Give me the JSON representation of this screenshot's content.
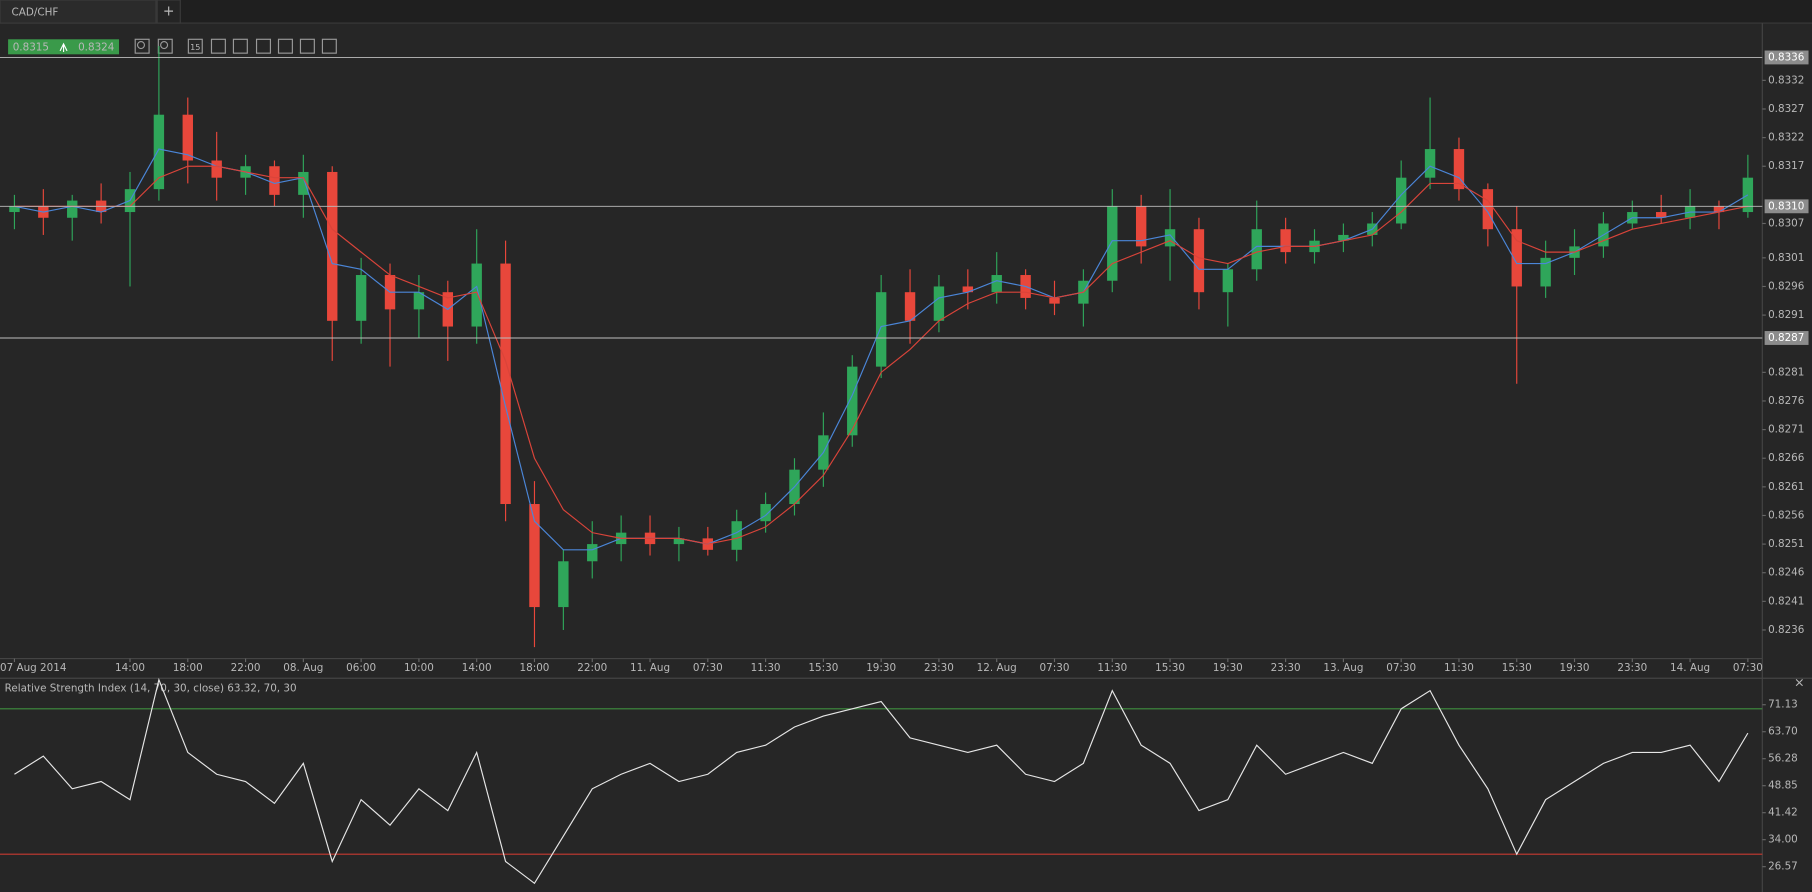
{
  "tab": {
    "title": "CAD/CHF",
    "new": "+"
  },
  "quote": {
    "bid": "0.8315",
    "ask": "0.8324"
  },
  "toolbar": {
    "interval": "15"
  },
  "chart_data": [
    {
      "type": "candlestick",
      "open": [
        0.8309,
        0.831,
        0.8308,
        0.8311,
        0.8309,
        0.8313,
        0.8326,
        0.8318,
        0.8315,
        0.8317,
        0.8312,
        0.8316,
        0.829,
        0.8298,
        0.8292,
        0.8295,
        0.8289,
        0.83,
        0.8258,
        0.824,
        0.8248,
        0.8251,
        0.8253,
        0.8251,
        0.8252,
        0.825,
        0.8255,
        0.8258,
        0.8264,
        0.827,
        0.8282,
        0.8295,
        0.829,
        0.8296,
        0.8295,
        0.8298,
        0.8294,
        0.8293,
        0.8297,
        0.831,
        0.8303,
        0.8306,
        0.8295,
        0.8299,
        0.8306,
        0.8302,
        0.8304,
        0.8305,
        0.8307,
        0.8315,
        0.832,
        0.8313,
        0.8306,
        0.8296,
        0.8301,
        0.8303,
        0.8307,
        0.8309,
        0.8308,
        0.831,
        0.8309
      ],
      "high": [
        0.8312,
        0.8313,
        0.8312,
        0.8314,
        0.8316,
        0.8338,
        0.8329,
        0.8323,
        0.8319,
        0.8318,
        0.8319,
        0.8317,
        0.8301,
        0.83,
        0.8298,
        0.8297,
        0.8306,
        0.8304,
        0.8262,
        0.825,
        0.8255,
        0.8256,
        0.8256,
        0.8254,
        0.8254,
        0.8257,
        0.826,
        0.8266,
        0.8274,
        0.8284,
        0.8298,
        0.8299,
        0.8298,
        0.8299,
        0.8302,
        0.8299,
        0.8297,
        0.8299,
        0.8313,
        0.8312,
        0.8313,
        0.8308,
        0.83,
        0.8311,
        0.8308,
        0.8306,
        0.8307,
        0.8309,
        0.8318,
        0.8329,
        0.8322,
        0.8314,
        0.831,
        0.8304,
        0.8306,
        0.8309,
        0.8311,
        0.8312,
        0.8313,
        0.8311,
        0.8319
      ],
      "low": [
        0.8306,
        0.8305,
        0.8304,
        0.8307,
        0.8296,
        0.8311,
        0.8314,
        0.8311,
        0.8312,
        0.831,
        0.8308,
        0.8283,
        0.8286,
        0.8282,
        0.8287,
        0.8283,
        0.8286,
        0.8255,
        0.8233,
        0.8236,
        0.8245,
        0.8248,
        0.8249,
        0.8248,
        0.8249,
        0.8248,
        0.8253,
        0.8256,
        0.8261,
        0.8268,
        0.828,
        0.8286,
        0.8288,
        0.8292,
        0.8293,
        0.8292,
        0.8291,
        0.8289,
        0.8295,
        0.83,
        0.8297,
        0.8292,
        0.8289,
        0.8297,
        0.83,
        0.83,
        0.8302,
        0.8303,
        0.8306,
        0.8313,
        0.8311,
        0.8303,
        0.8279,
        0.8294,
        0.8298,
        0.8301,
        0.8306,
        0.8307,
        0.8306,
        0.8306,
        0.8308
      ],
      "close": [
        0.831,
        0.8308,
        0.8311,
        0.8309,
        0.8313,
        0.8326,
        0.8318,
        0.8315,
        0.8317,
        0.8312,
        0.8316,
        0.829,
        0.8298,
        0.8292,
        0.8295,
        0.8289,
        0.83,
        0.8258,
        0.824,
        0.8248,
        0.8251,
        0.8253,
        0.8251,
        0.8252,
        0.825,
        0.8255,
        0.8258,
        0.8264,
        0.827,
        0.8282,
        0.8295,
        0.829,
        0.8296,
        0.8295,
        0.8298,
        0.8294,
        0.8293,
        0.8297,
        0.831,
        0.8303,
        0.8306,
        0.8295,
        0.8299,
        0.8306,
        0.8302,
        0.8304,
        0.8305,
        0.8307,
        0.8315,
        0.832,
        0.8313,
        0.8306,
        0.8296,
        0.8301,
        0.8303,
        0.8307,
        0.8309,
        0.8308,
        0.831,
        0.8309,
        0.8315
      ],
      "up_color": "#2fa65a",
      "down_color": "#e8473b",
      "overlays": [
        {
          "color": "#4b86d8",
          "values": [
            0.831,
            0.8309,
            0.831,
            0.8309,
            0.8311,
            0.832,
            0.8319,
            0.8317,
            0.8316,
            0.8314,
            0.8315,
            0.83,
            0.8299,
            0.8295,
            0.8295,
            0.8292,
            0.8296,
            0.8275,
            0.8255,
            0.825,
            0.825,
            0.8252,
            0.8252,
            0.8252,
            0.8251,
            0.8253,
            0.8256,
            0.8261,
            0.8267,
            0.8277,
            0.8289,
            0.829,
            0.8294,
            0.8295,
            0.8297,
            0.8296,
            0.8294,
            0.8295,
            0.8304,
            0.8304,
            0.8305,
            0.8299,
            0.8299,
            0.8303,
            0.8303,
            0.8303,
            0.8304,
            0.8306,
            0.8312,
            0.8317,
            0.8315,
            0.8309,
            0.83,
            0.83,
            0.8302,
            0.8305,
            0.8308,
            0.8308,
            0.8309,
            0.8309,
            0.8312
          ]
        },
        {
          "color": "#d9443a",
          "values": [
            0.831,
            0.831,
            0.831,
            0.831,
            0.831,
            0.8315,
            0.8317,
            0.8317,
            0.8316,
            0.8315,
            0.8315,
            0.8306,
            0.8302,
            0.8298,
            0.8296,
            0.8294,
            0.8295,
            0.8283,
            0.8266,
            0.8257,
            0.8253,
            0.8252,
            0.8252,
            0.8252,
            0.8251,
            0.8252,
            0.8254,
            0.8258,
            0.8263,
            0.8271,
            0.8281,
            0.8285,
            0.829,
            0.8293,
            0.8295,
            0.8295,
            0.8294,
            0.8295,
            0.83,
            0.8302,
            0.8304,
            0.8301,
            0.83,
            0.8302,
            0.8303,
            0.8303,
            0.8304,
            0.8305,
            0.8309,
            0.8314,
            0.8314,
            0.8311,
            0.8304,
            0.8302,
            0.8302,
            0.8304,
            0.8306,
            0.8307,
            0.8308,
            0.8309,
            0.831
          ]
        }
      ],
      "xlim": [
        -0.5,
        60.5
      ],
      "xticks": [
        {
          "value": 0,
          "label": "07 Aug 2014"
        },
        {
          "value": 4,
          "label": "14:00"
        },
        {
          "value": 6,
          "label": "18:00"
        },
        {
          "value": 8,
          "label": "22:00"
        },
        {
          "value": 10,
          "label": "08. Aug"
        },
        {
          "value": 12,
          "label": "06:00"
        },
        {
          "value": 14,
          "label": "10:00"
        },
        {
          "value": 16,
          "label": "14:00"
        },
        {
          "value": 18,
          "label": "18:00"
        },
        {
          "value": 20,
          "label": "22:00"
        },
        {
          "value": 22,
          "label": "11. Aug"
        },
        {
          "value": 24,
          "label": "07:30"
        },
        {
          "value": 26,
          "label": "11:30"
        },
        {
          "value": 28,
          "label": "15:30"
        },
        {
          "value": 30,
          "label": "19:30"
        },
        {
          "value": 32,
          "label": "23:30"
        },
        {
          "value": 34,
          "label": "12. Aug"
        },
        {
          "value": 36,
          "label": "07:30"
        },
        {
          "value": 38,
          "label": "11:30"
        },
        {
          "value": 40,
          "label": "15:30"
        },
        {
          "value": 42,
          "label": "19:30"
        },
        {
          "value": 44,
          "label": "23:30"
        },
        {
          "value": 46,
          "label": "13. Aug"
        },
        {
          "value": 48,
          "label": "07:30"
        },
        {
          "value": 50,
          "label": "11:30"
        },
        {
          "value": 52,
          "label": "15:30"
        },
        {
          "value": 54,
          "label": "19:30"
        },
        {
          "value": 56,
          "label": "23:30"
        },
        {
          "value": 58,
          "label": "14. Aug"
        },
        {
          "value": 60,
          "label": "07:30"
        }
      ],
      "ylim": [
        0.8231,
        0.8342
      ],
      "yticks": [
        0.8332,
        0.8327,
        0.8322,
        0.8317,
        0.8307,
        0.8301,
        0.8296,
        0.8291,
        0.8281,
        0.8276,
        0.8271,
        0.8266,
        0.8261,
        0.8256,
        0.8251,
        0.8246,
        0.8241,
        0.8236
      ],
      "levels": [
        0.8336,
        {
          "value": 0.831,
          "label": "0.8310"
        },
        0.8287
      ],
      "grid": false
    },
    {
      "type": "line",
      "title": "Relative Strength Index (14, 70, 30, close) 63.32, 70, 30",
      "color": "#e6e6e6",
      "values": [
        52,
        57,
        48,
        50,
        45,
        78,
        58,
        52,
        50,
        44,
        55,
        28,
        45,
        38,
        48,
        42,
        58,
        28,
        22,
        35,
        48,
        52,
        55,
        50,
        52,
        58,
        60,
        65,
        68,
        70,
        72,
        62,
        60,
        58,
        60,
        52,
        50,
        55,
        75,
        60,
        55,
        42,
        45,
        60,
        52,
        55,
        58,
        55,
        70,
        75,
        60,
        48,
        30,
        45,
        50,
        55,
        58,
        58,
        60,
        50,
        63.32
      ],
      "xlim": [
        -0.5,
        60.5
      ],
      "ylim": [
        19.6,
        78.1
      ],
      "yticks": [
        71.13,
        {
          "value": 63.7,
          "label": "63.70"
        },
        56.28,
        48.85,
        41.42,
        {
          "value": 34,
          "label": "34.00"
        },
        26.57
      ],
      "levels": [
        {
          "value": 70,
          "color": "#3f8f3f"
        },
        {
          "value": 30,
          "color": "#c93a30"
        }
      ]
    }
  ]
}
